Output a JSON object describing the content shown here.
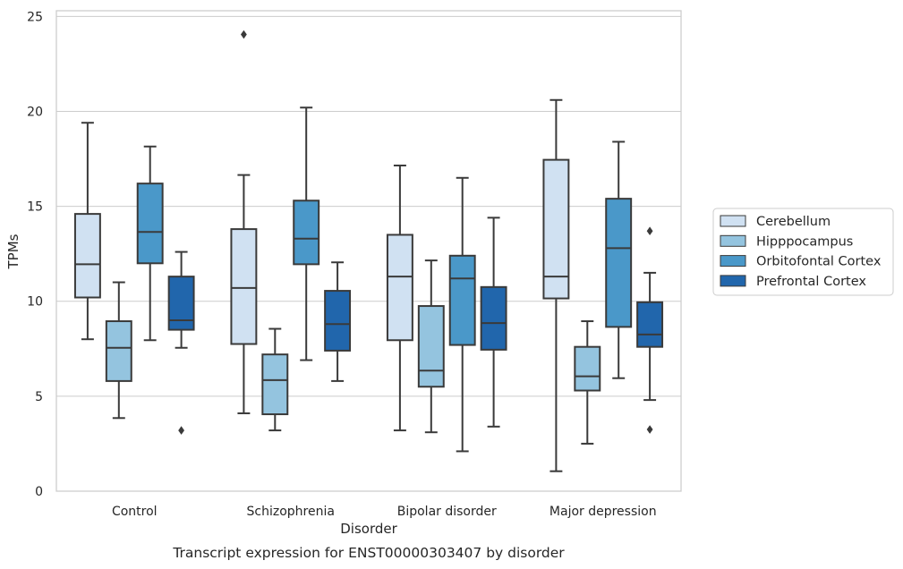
{
  "chart_data": {
    "type": "box",
    "caption": "Transcript expression for ENST00000303407 by disorder",
    "xlabel": "Disorder",
    "ylabel": "TPMs",
    "ylim": [
      0,
      25.3
    ],
    "yticks": [
      0,
      5,
      10,
      15,
      20,
      25
    ],
    "grid": "horizontal",
    "legend_position": "right",
    "categories": [
      "Control",
      "Schizophrenia",
      "Bipolar disorder",
      "Major depression"
    ],
    "series": [
      {
        "name": "Cerebellum",
        "color": "#d0e1f2",
        "boxes": [
          {
            "whislo": 8.0,
            "q1": 10.2,
            "med": 11.95,
            "q3": 14.6,
            "whishi": 19.4,
            "fliers": []
          },
          {
            "whislo": 4.1,
            "q1": 7.75,
            "med": 10.7,
            "q3": 13.8,
            "whishi": 16.65,
            "fliers": [
              24.05
            ]
          },
          {
            "whislo": 3.2,
            "q1": 7.95,
            "med": 11.3,
            "q3": 13.5,
            "whishi": 17.15,
            "fliers": []
          },
          {
            "whislo": 1.05,
            "q1": 10.15,
            "med": 11.3,
            "q3": 17.45,
            "whishi": 20.6,
            "fliers": []
          }
        ]
      },
      {
        "name": "Hipppocampus",
        "color": "#94c4df",
        "boxes": [
          {
            "whislo": 3.85,
            "q1": 5.8,
            "med": 7.55,
            "q3": 8.95,
            "whishi": 11.0,
            "fliers": []
          },
          {
            "whislo": 3.2,
            "q1": 4.05,
            "med": 5.85,
            "q3": 7.2,
            "whishi": 8.55,
            "fliers": []
          },
          {
            "whislo": 3.1,
            "q1": 5.5,
            "med": 6.35,
            "q3": 9.75,
            "whishi": 12.15,
            "fliers": []
          },
          {
            "whislo": 2.5,
            "q1": 5.3,
            "med": 6.05,
            "q3": 7.6,
            "whishi": 8.95,
            "fliers": []
          }
        ]
      },
      {
        "name": "Orbitofontal Cortex",
        "color": "#4a98c9",
        "boxes": [
          {
            "whislo": 7.95,
            "q1": 12.0,
            "med": 13.65,
            "q3": 16.2,
            "whishi": 18.15,
            "fliers": []
          },
          {
            "whislo": 6.9,
            "q1": 11.95,
            "med": 13.3,
            "q3": 15.3,
            "whishi": 20.2,
            "fliers": []
          },
          {
            "whislo": 2.1,
            "q1": 7.7,
            "med": 11.2,
            "q3": 12.4,
            "whishi": 16.5,
            "fliers": []
          },
          {
            "whislo": 5.95,
            "q1": 8.65,
            "med": 12.8,
            "q3": 15.4,
            "whishi": 18.4,
            "fliers": []
          }
        ]
      },
      {
        "name": "Prefrontal Cortex",
        "color": "#2166ac",
        "boxes": [
          {
            "whislo": 7.55,
            "q1": 8.5,
            "med": 9.0,
            "q3": 11.3,
            "whishi": 12.6,
            "fliers": [
              3.2
            ]
          },
          {
            "whislo": 5.8,
            "q1": 7.4,
            "med": 8.8,
            "q3": 10.55,
            "whishi": 12.05,
            "fliers": []
          },
          {
            "whislo": 3.4,
            "q1": 7.45,
            "med": 8.85,
            "q3": 10.75,
            "whishi": 14.4,
            "fliers": []
          },
          {
            "whislo": 4.8,
            "q1": 7.6,
            "med": 8.25,
            "q3": 9.95,
            "whishi": 11.5,
            "fliers": [
              13.7,
              3.25
            ]
          }
        ]
      }
    ]
  }
}
